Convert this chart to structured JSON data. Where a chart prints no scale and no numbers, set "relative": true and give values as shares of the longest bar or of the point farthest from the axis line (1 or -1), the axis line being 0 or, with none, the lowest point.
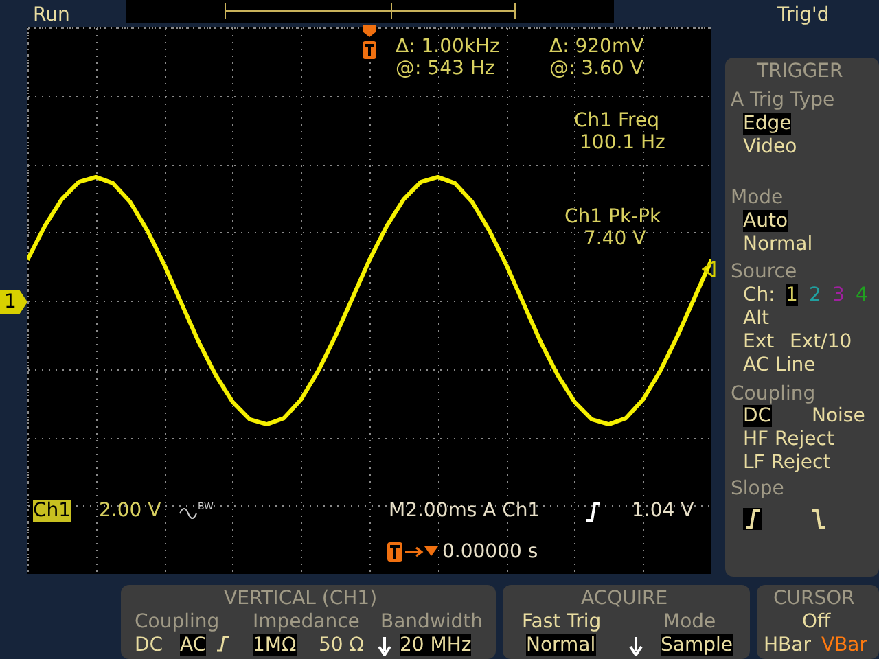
{
  "chart_data": {
    "type": "line",
    "relative": true,
    "categories": [
      null,
      null,
      null,
      null,
      null,
      null,
      null,
      null,
      null,
      null,
      null,
      null,
      null,
      null,
      null,
      null,
      null,
      null,
      null,
      null,
      null,
      null,
      null,
      null,
      null,
      null,
      null,
      null,
      null,
      null,
      null,
      null,
      null,
      null,
      null,
      null,
      null,
      null,
      null,
      null,
      null
    ],
    "series": [
      {
        "color": "#f5f000",
        "values": [
          0.33,
          0.6,
          0.82,
          0.96,
          1,
          0.95,
          0.8,
          0.57,
          0.29,
          -0.02,
          -0.33,
          -0.6,
          -0.82,
          -0.96,
          -1,
          -0.95,
          -0.8,
          -0.57,
          -0.29,
          0.02,
          0.33,
          0.6,
          0.82,
          0.96,
          1,
          0.95,
          0.8,
          0.57,
          0.29,
          -0.02,
          -0.33,
          -0.6,
          -0.82,
          -0.96,
          -1,
          -0.95,
          -0.8,
          -0.57,
          -0.29,
          0.02,
          0.33
        ]
      }
    ],
    "grid": true,
    "marker": "none",
    "line_style": "solid",
    "annotations": [
      "Run",
      "Trig'd",
      "Δ: 1.00kHz",
      "@: 543 Hz",
      "Δ: 920mV",
      "@: 3.60 V",
      "Ch1 Freq",
      "100.1 Hz",
      "Ch1 Pk-Pk",
      "7.40 V",
      "1",
      "Ch1",
      "2.00 V",
      "M2.00ms A Ch1",
      "1.04 V",
      "0.00000 s",
      "TRIGGER",
      "A Trig Type",
      "Edge",
      "Video",
      "Mode",
      "Auto",
      "Normal",
      "Source",
      "Ch:",
      "1",
      "2",
      "3",
      "4",
      "Alt",
      "Ext",
      "Ext/10",
      "AC Line",
      "Coupling",
      "DC",
      "Noise",
      "HF Reject",
      "LF Reject",
      "Slope",
      "VERTICAL (CH1)",
      "Coupling",
      "DC",
      "AC",
      "Impedance",
      "1MΩ",
      "50 Ω",
      "Bandwidth",
      "20 MHz",
      "ACQUIRE",
      "Fast Trig",
      "Normal",
      "Mode",
      "Sample",
      "CURSOR",
      "Off",
      "HBar",
      "VBar",
      "BW"
    ]
  }
}
